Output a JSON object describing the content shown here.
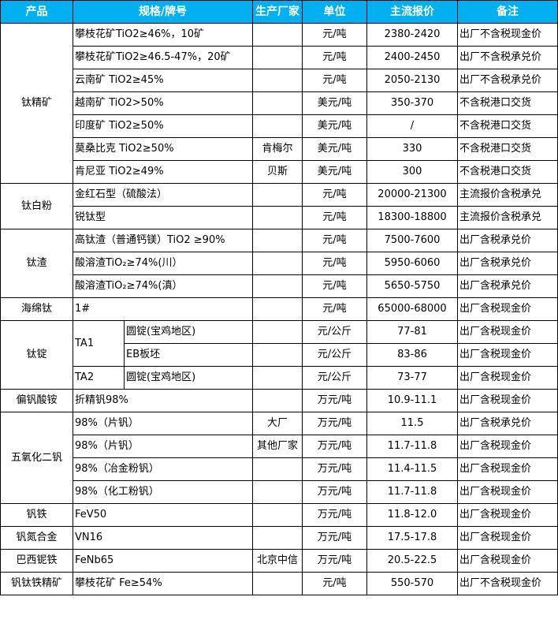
{
  "colors": {
    "header_bg": "#00B0F0",
    "header_text": "#FFFFFF",
    "border": "#000000"
  },
  "header": [
    "产品",
    "规格/牌号",
    "生产厂家",
    "单位",
    "主流报价",
    "备注"
  ],
  "groups": [
    {
      "product": "钛精矿",
      "rows": [
        {
          "spec": "攀枝花矿TiO2≥46%，10矿",
          "maker": "",
          "unit": "元/吨",
          "price": "2380-2420",
          "note": "出厂不含税现金价"
        },
        {
          "spec": "攀枝花矿TiO2≥46.5-47%，20矿",
          "maker": "",
          "unit": "元/吨",
          "price": "2400-2450",
          "note": "出厂不含税承兑价"
        },
        {
          "spec": "云南矿 TiO2≥45%",
          "maker": "",
          "unit": "元/吨",
          "price": "2050-2130",
          "note": "出厂不含税承兑价"
        },
        {
          "spec": "越南矿 TiO2>50%",
          "maker": "",
          "unit": "美元/吨",
          "price": "350-370",
          "note": "不含税港口交货"
        },
        {
          "spec": "印度矿 TiO2≥50%",
          "maker": "",
          "unit": "美元/吨",
          "price": "/",
          "note": "不含税港口交货"
        },
        {
          "spec": "莫桑比克 TiO2≥50%",
          "maker": "肯梅尔",
          "unit": "美元/吨",
          "price": "330",
          "note": "不含税港口交货"
        },
        {
          "spec": "肯尼亚 TiO2≥49%",
          "maker": "贝斯",
          "unit": "美元/吨",
          "price": "300",
          "note": "不含税港口交货"
        }
      ]
    },
    {
      "product": "钛白粉",
      "rows": [
        {
          "spec": "金红石型（硫酸法）",
          "maker": "",
          "unit": "元/吨",
          "price": "20000-21300",
          "note": "主流报价含税承兑"
        },
        {
          "spec": "锐钛型",
          "maker": "",
          "unit": "元/吨",
          "price": "18300-18800",
          "note": "主流报价含税承兑"
        }
      ]
    },
    {
      "product": "钛渣",
      "rows": [
        {
          "spec": "高钛渣（普通钙镁）TiO2 ≥90%",
          "maker": "",
          "unit": "元/吨",
          "price": "7500-7600",
          "note": "出厂含税承兑价"
        },
        {
          "spec": "酸溶渣TiO₂≥74%(川）",
          "maker": "",
          "unit": "元/吨",
          "price": "5950-6060",
          "note": "出厂含税承兑价"
        },
        {
          "spec": "酸溶渣TiO₂≥74%(滇）",
          "maker": "",
          "unit": "元/吨",
          "price": "5650-5750",
          "note": "出厂含税承兑价"
        }
      ]
    },
    {
      "product": "海绵钛",
      "rows": [
        {
          "spec": "1#",
          "maker": "",
          "unit": "元/吨",
          "price": "65000-68000",
          "note": "出厂含税现金价"
        }
      ]
    },
    {
      "product": "钛锭",
      "grades": [
        {
          "grade": "TA1",
          "rows": [
            {
              "spec": "圆锭(宝鸡地区)",
              "maker": "",
              "unit": "元/公斤",
              "price": "77-81",
              "note": "出厂含税现金价"
            },
            {
              "spec": "EB板坯",
              "maker": "",
              "unit": "元/公斤",
              "price": "83-86",
              "note": "出厂含税现金价"
            }
          ]
        },
        {
          "grade": "TA2",
          "rows": [
            {
              "spec": "圆锭(宝鸡地区)",
              "maker": "",
              "unit": "元/公斤",
              "price": "73-77",
              "note": "出厂含税现金价"
            }
          ]
        }
      ]
    },
    {
      "product": "偏钒酸铵",
      "rows": [
        {
          "spec": "折精钒98%",
          "maker": "",
          "unit": "万元/吨",
          "price": "10.9-11.1",
          "note": "出厂含税现金价"
        }
      ]
    },
    {
      "product": "五氧化二钒",
      "rows": [
        {
          "spec": "98%（片钒）",
          "maker": "大厂",
          "unit": "万元/吨",
          "price": "11.5",
          "note": "出厂含税承兑价"
        },
        {
          "spec": "98%（片钒）",
          "maker": "其他厂家",
          "unit": "万元/吨",
          "price": "11.7-11.8",
          "note": "出厂含税现金价"
        },
        {
          "spec": "98%（冶金粉钒）",
          "maker": "",
          "unit": "万元/吨",
          "price": "11.4-11.5",
          "note": "出厂含税现金价"
        },
        {
          "spec": "98%（化工粉钒）",
          "maker": "",
          "unit": "万元/吨",
          "price": "11.7-11.8",
          "note": "出厂含税现金价"
        }
      ]
    },
    {
      "product": "钒铁",
      "rows": [
        {
          "spec": "FeV50",
          "maker": "",
          "unit": "万元/吨",
          "price": "11.8-12.0",
          "note": "出厂含税现金价"
        }
      ]
    },
    {
      "product": "钒氮合金",
      "rows": [
        {
          "spec": "VN16",
          "maker": "",
          "unit": "万元/吨",
          "price": "17.5-17.8",
          "note": "出厂含税现金价"
        }
      ]
    },
    {
      "product": "巴西铌铁",
      "rows": [
        {
          "spec": "FeNb65",
          "maker": "北京中信",
          "unit": "万元/吨",
          "price": "20.5-22.5",
          "note": "出厂含税现金价"
        }
      ]
    },
    {
      "product": "钒钛铁精矿",
      "rows": [
        {
          "spec": "攀枝花矿 Fe≥54%",
          "maker": "",
          "unit": "元/吨",
          "price": "550-570",
          "note": "出厂不含税现金价"
        }
      ]
    }
  ]
}
